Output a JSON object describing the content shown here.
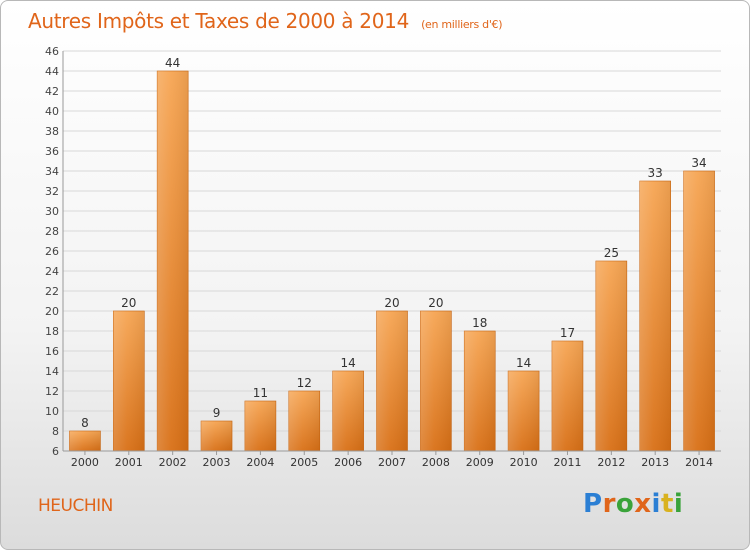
{
  "title": "Autres Impôts et Taxes de 2000 à 2014",
  "subtitle": "(en milliers d'€)",
  "commune": "HEUCHIN",
  "brand": "Proxiti",
  "colors": {
    "accent": "#e0651a",
    "bar_top": "#f6a553",
    "bar_bottom": "#d86f15",
    "grid": "#d8d8d8"
  },
  "chart_data": {
    "type": "bar",
    "categories": [
      "2000",
      "2001",
      "2002",
      "2003",
      "2004",
      "2005",
      "2006",
      "2007",
      "2008",
      "2009",
      "2010",
      "2011",
      "2012",
      "2013",
      "2014"
    ],
    "values": [
      8,
      20,
      44,
      9,
      11,
      12,
      14,
      20,
      20,
      18,
      14,
      17,
      25,
      33,
      34
    ],
    "ylim": [
      6,
      46
    ],
    "yticks": [
      6,
      8,
      10,
      12,
      14,
      16,
      18,
      20,
      22,
      24,
      26,
      28,
      30,
      32,
      34,
      36,
      38,
      40,
      42,
      44,
      46
    ],
    "grid": true,
    "data_labels": true
  }
}
